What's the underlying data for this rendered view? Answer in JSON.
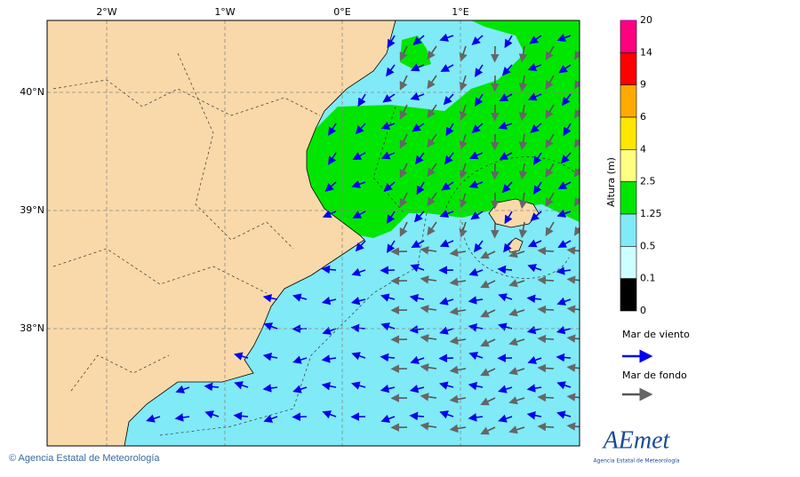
{
  "map": {
    "lon_labels": [
      "2°W",
      "1°W",
      "0°E",
      "1°E"
    ],
    "lat_labels": [
      "40°N",
      "39°N",
      "38°N"
    ],
    "colorbar": {
      "title": "Altura (m)",
      "levels": [
        {
          "label": "20",
          "color": "#b000b0"
        },
        {
          "label": "14",
          "color": "#ff007f"
        },
        {
          "label": "9",
          "color": "#ff0000"
        },
        {
          "label": "6",
          "color": "#ffaa00"
        },
        {
          "label": "4",
          "color": "#ffe600"
        },
        {
          "label": "2.5",
          "color": "#ffff80"
        },
        {
          "label": "1.25",
          "color": "#00e600"
        },
        {
          "label": "0.5",
          "color": "#80eaf7"
        },
        {
          "label": "0.1",
          "color": "#ccffff"
        },
        {
          "label": "0",
          "color": null
        }
      ]
    },
    "legend": [
      {
        "label": "Mar de viento",
        "color": "#0000ee"
      },
      {
        "label": "Mar de fondo",
        "color": "#555555"
      }
    ],
    "footer": "© Agencia Estatal de Meteorología",
    "logo": {
      "name": "AEmet",
      "subtitle": "Agencia Estatal de Meteorología"
    }
  }
}
